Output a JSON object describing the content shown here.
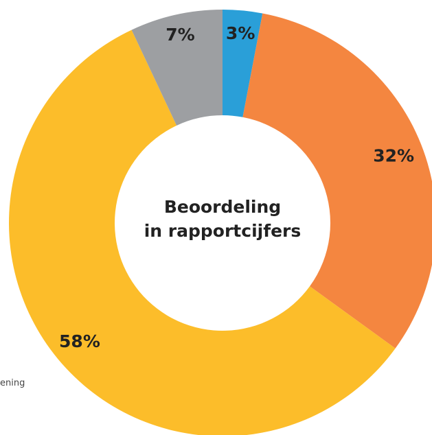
{
  "chart_data": {
    "type": "pie",
    "donut": true,
    "title": "Beoordeling in rapportcijfers",
    "title_lines": [
      "Beoordeling",
      "in rapportcijfers"
    ],
    "slices": [
      {
        "label": "3%",
        "value": 3,
        "color": "#2a9fd8"
      },
      {
        "label": "32%",
        "value": 32,
        "color": "#f48640"
      },
      {
        "label": "58%",
        "value": 58,
        "color": "#fcbd2a"
      },
      {
        "label": "7%",
        "value": 7,
        "color": "#9d9fa2"
      }
    ]
  },
  "side_text": "ening"
}
